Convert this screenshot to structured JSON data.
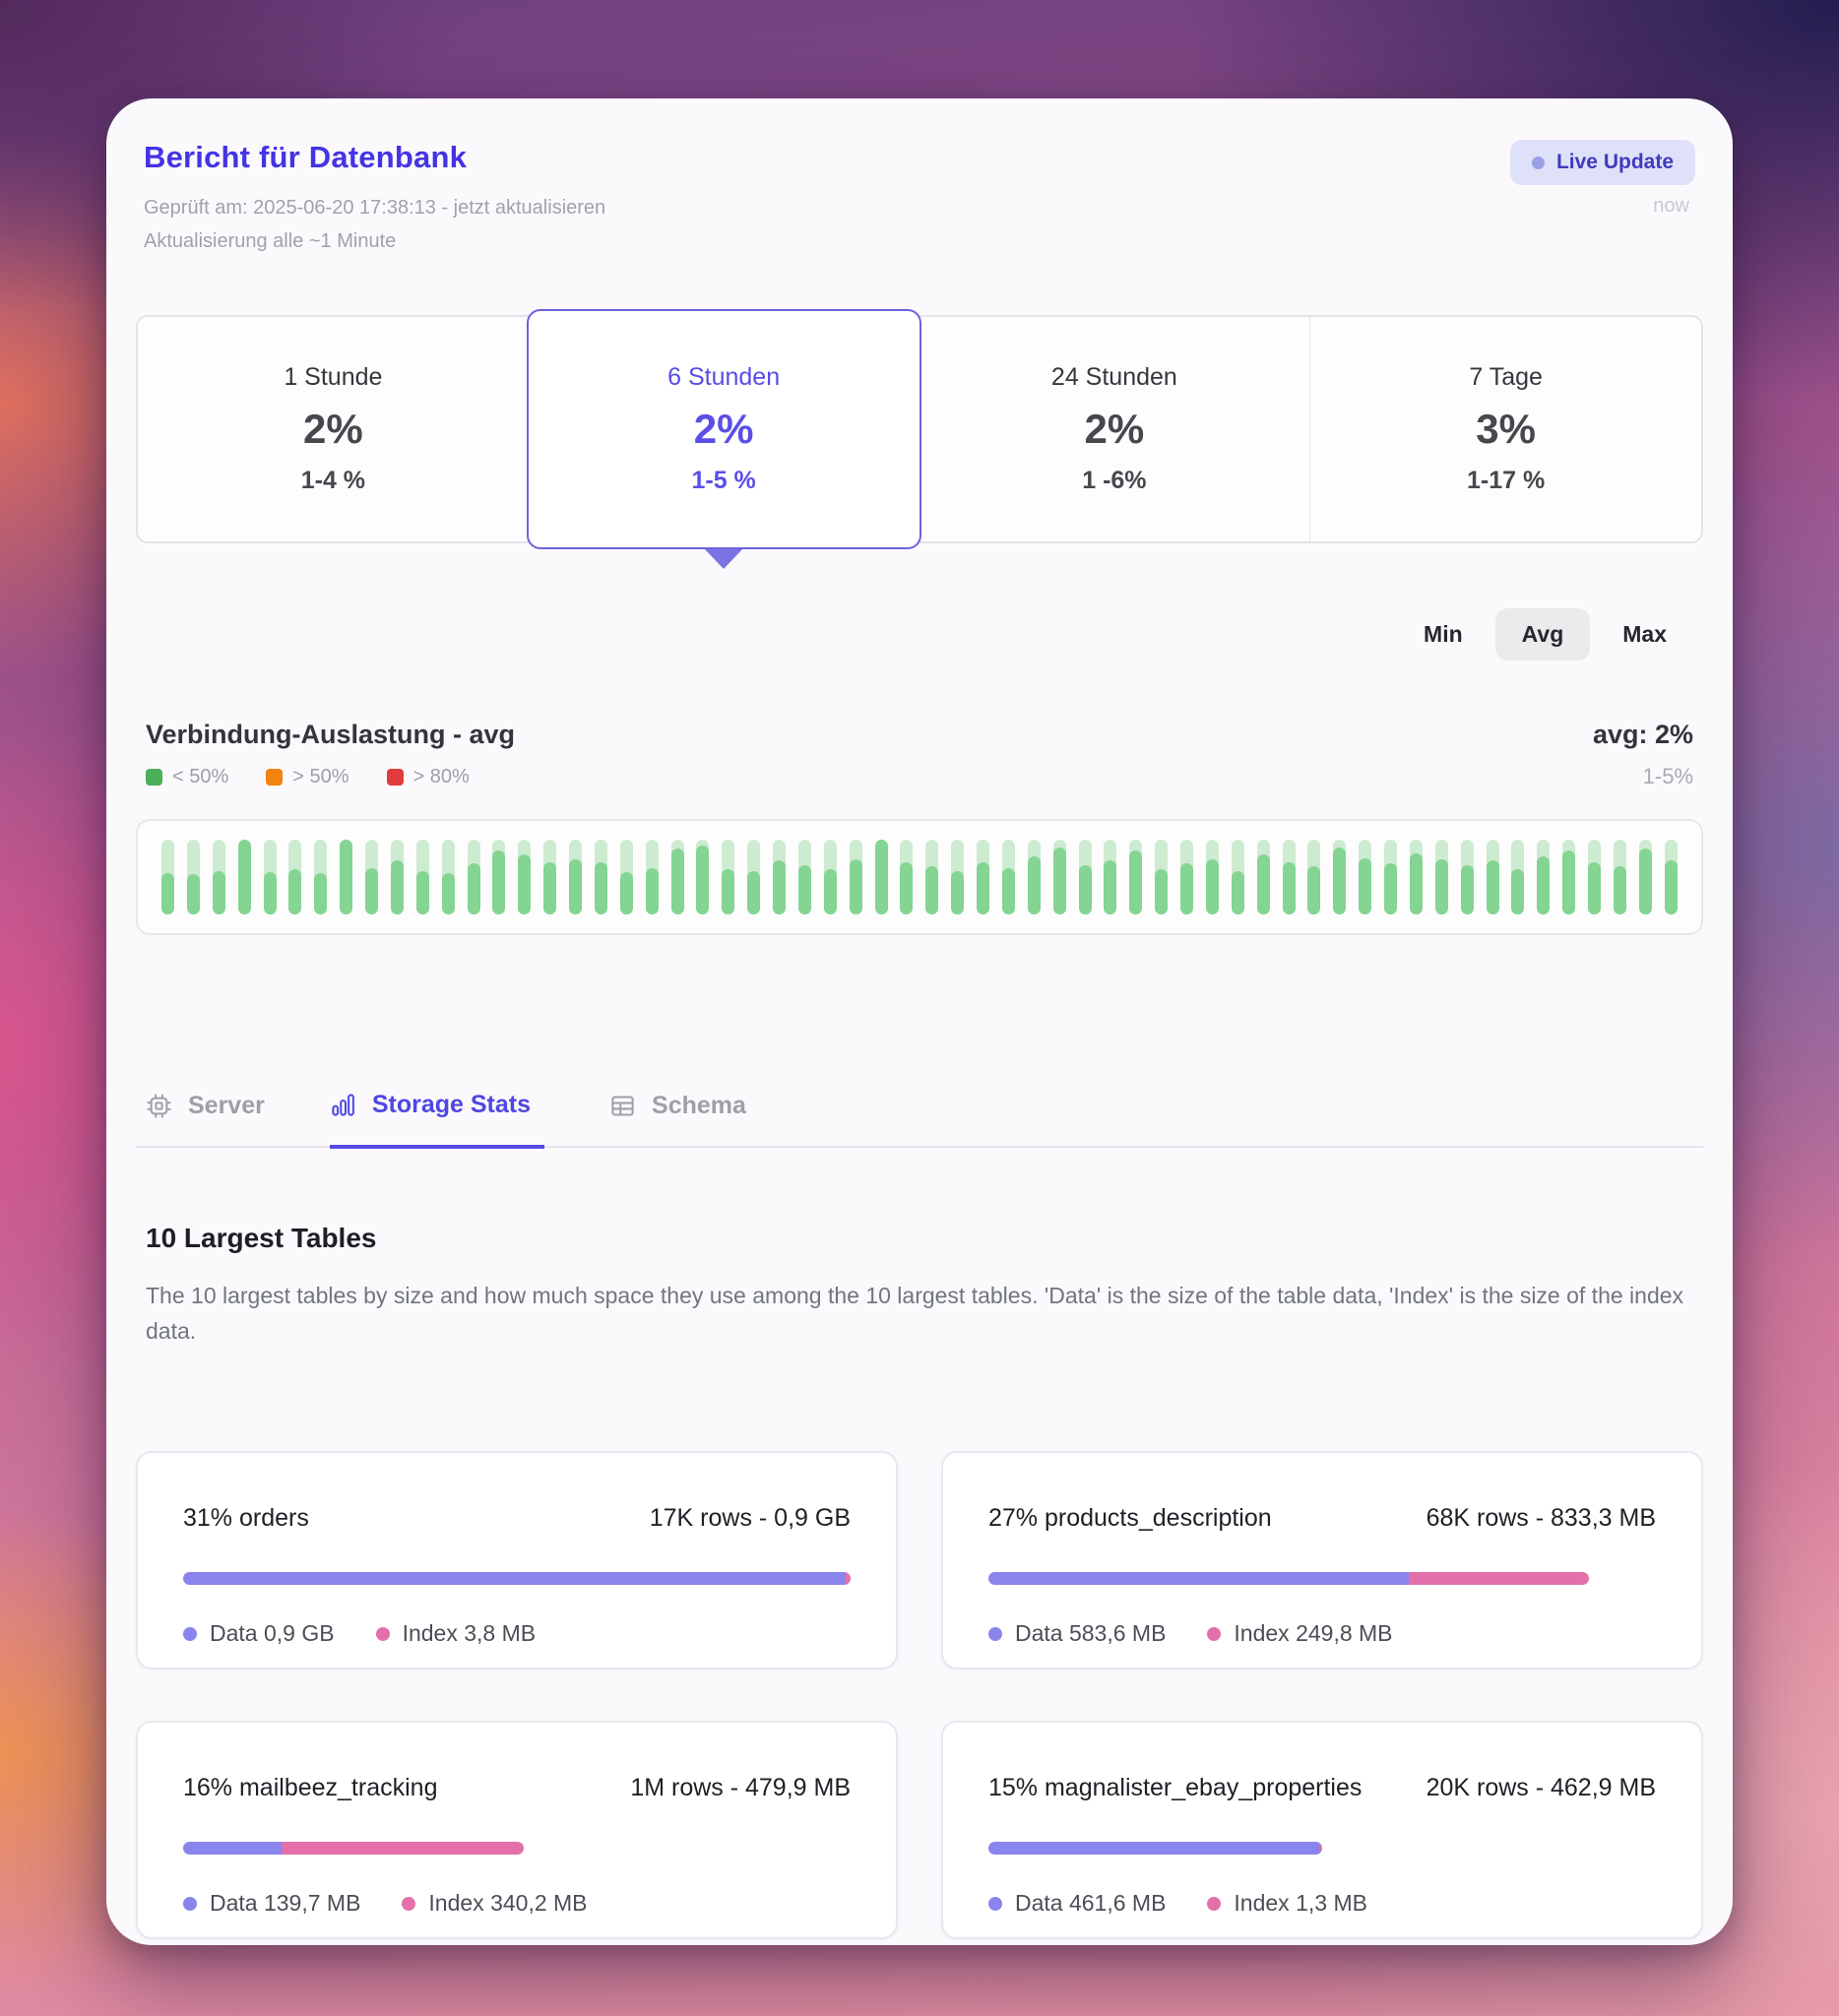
{
  "header": {
    "title": "Bericht für Datenbank",
    "checked_prefix": "Geprüft am: 2025-06-20 17:38:13 - ",
    "update_link": "jetzt aktualisieren",
    "refresh_note": "Aktualisierung alle ~1 Minute",
    "live_update": {
      "label": "Live Update",
      "time": "now"
    }
  },
  "time_ranges": {
    "items": [
      {
        "label": "1 Stunde",
        "value": "2%",
        "range": "1-4 %",
        "selected": false
      },
      {
        "label": "6 Stunden",
        "value": "2%",
        "range": "1-5 %",
        "selected": true
      },
      {
        "label": "24 Stunden",
        "value": "2%",
        "range": "1 -6%",
        "selected": false
      },
      {
        "label": "7 Tage",
        "value": "3%",
        "range": "1-17 %",
        "selected": false
      }
    ]
  },
  "stat_toggle": {
    "options": [
      "Min",
      "Avg",
      "Max"
    ],
    "selected": "Avg"
  },
  "connection_chart": {
    "type": "bar",
    "title": "Verbindung-Auslastung - avg",
    "legend": [
      {
        "label": "< 50%",
        "color": "#4cb058"
      },
      {
        "label": "> 50%",
        "color": "#f2830d"
      },
      {
        "label": "> 80%",
        "color": "#e23b3b"
      }
    ],
    "avg_label": "avg: 2%",
    "range_label": "1-5%",
    "track_color": "#cdebd0",
    "fill_color": "#84d492",
    "values": [
      55,
      54,
      58,
      100,
      56,
      60,
      55,
      100,
      62,
      72,
      58,
      55,
      68,
      85,
      80,
      70,
      74,
      70,
      56,
      62,
      88,
      92,
      60,
      58,
      72,
      66,
      60,
      74,
      100,
      70,
      64,
      58,
      70,
      62,
      78,
      90,
      66,
      72,
      85,
      60,
      68,
      74,
      58,
      80,
      70,
      64,
      90,
      75,
      68,
      82,
      74,
      66,
      72,
      60,
      78,
      85,
      70,
      64,
      88,
      72
    ]
  },
  "tabs": {
    "items": [
      {
        "label": "Server",
        "icon": "cpu-icon",
        "active": false
      },
      {
        "label": "Storage Stats",
        "icon": "bar-chart-icon",
        "active": true
      },
      {
        "label": "Schema",
        "icon": "table-icon",
        "active": false
      }
    ]
  },
  "largest_tables": {
    "heading": "10 Largest Tables",
    "description": "The 10 largest tables by size and how much space they use among the 10 largest tables. 'Data' is the size of the table data, 'Index' is the size of the index data.",
    "data_color": "#8a85ec",
    "index_color": "#e370aa",
    "cards": [
      {
        "title": "31% orders",
        "meta": "17K rows - 0,9 GB",
        "data_label": "Data 0,9 GB",
        "index_label": "Index 3,8 MB",
        "bar_total_pct": 100,
        "data_share_pct": 99.3
      },
      {
        "title": "27% products_description",
        "meta": "68K rows - 833,3 MB",
        "data_label": "Data 583,6 MB",
        "index_label": "Index 249,8 MB",
        "bar_total_pct": 90,
        "data_share_pct": 70
      },
      {
        "title": "16% mailbeez_tracking",
        "meta": "1M rows - 479,9 MB",
        "data_label": "Data 139,7 MB",
        "index_label": "Index 340,2 MB",
        "bar_total_pct": 51,
        "data_share_pct": 29
      },
      {
        "title": "15% magnalister_ebay_properties",
        "meta": "20K rows - 462,9 MB",
        "data_label": "Data 461,6 MB",
        "index_label": "Index 1,3 MB",
        "bar_total_pct": 50,
        "data_share_pct": 99.5
      }
    ]
  },
  "colors": {
    "accent": "#4f46e5",
    "title": "#4334e4"
  }
}
